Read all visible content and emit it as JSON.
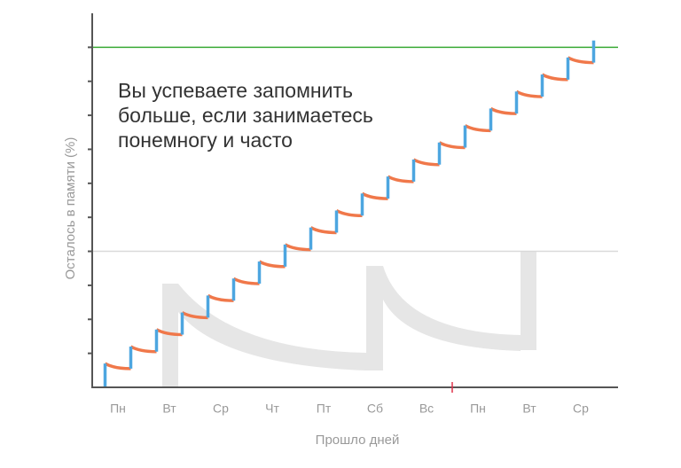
{
  "chart_data": {
    "type": "sawtooth",
    "annotation": [
      "Вы успеваете запомнить",
      "больше, если занимаетесь",
      "понемногу и часто"
    ],
    "ylabel": "Осталось в памяти (%)",
    "xlabel": "Прошло дней",
    "categories": [
      "Пн",
      "Вт",
      "Ср",
      "Чт",
      "Пт",
      "Сб",
      "Вс",
      "Пн",
      "Вт",
      "Ср"
    ],
    "xlim": [
      0,
      10
    ],
    "ylim": [
      0,
      110
    ],
    "yticks": [
      10,
      20,
      30,
      40,
      50,
      60,
      70,
      80,
      90,
      100
    ],
    "x": [
      0.25,
      0.75,
      1.25,
      1.75,
      2.25,
      2.75,
      3.25,
      3.75,
      4.25,
      4.75,
      5.25,
      5.75,
      6.25,
      6.75,
      7.25,
      7.75,
      8.25,
      8.75,
      9.25,
      9.75
    ],
    "before": [
      0,
      5.5,
      10.5,
      15.5,
      20.5,
      25.5,
      30.5,
      35.5,
      40.5,
      45.5,
      50.5,
      55.5,
      60.5,
      65.5,
      70.5,
      75.5,
      80.5,
      85.5,
      90.5,
      95.5
    ],
    "after": [
      7,
      12,
      17,
      22,
      27,
      32,
      37,
      42,
      47,
      52,
      57,
      62,
      67,
      72,
      77,
      82,
      87,
      92,
      97,
      102
    ],
    "rise_color": "#4da6e0",
    "decay_color": "#f0784a",
    "reference_lines": [
      {
        "value": 100,
        "color": "#3aaa35"
      },
      {
        "value": 40,
        "color": "#d9d9d9"
      }
    ],
    "week_boundary": {
      "value": 7,
      "color": "#e0324b"
    }
  }
}
